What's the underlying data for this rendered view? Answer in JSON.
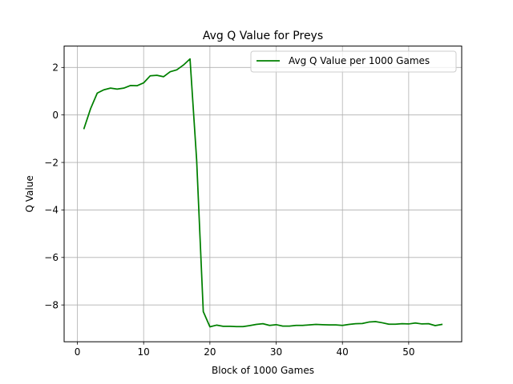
{
  "chart_data": {
    "type": "line",
    "title": "Avg Q Value for Preys",
    "xlabel": "Block of 1000 Games",
    "ylabel": "Q Value",
    "xlim": [
      -2,
      58
    ],
    "ylim": [
      -9.55,
      2.9
    ],
    "xticks": [
      0,
      10,
      20,
      30,
      40,
      50
    ],
    "yticks": [
      -8,
      -6,
      -4,
      -2,
      0,
      2
    ],
    "xtick_labels": [
      "0",
      "10",
      "20",
      "30",
      "40",
      "50"
    ],
    "ytick_labels": [
      "−8",
      "−6",
      "−4",
      "−2",
      "0",
      "2"
    ],
    "grid": true,
    "legend_position": "top-right",
    "series": [
      {
        "name": "Avg Q Value per 1000 Games",
        "color": "#008000",
        "x": [
          1,
          2,
          3,
          4,
          5,
          6,
          7,
          8,
          9,
          10,
          11,
          12,
          13,
          14,
          15,
          16,
          17,
          18,
          19,
          20,
          21,
          22,
          23,
          24,
          25,
          26,
          27,
          28,
          29,
          30,
          31,
          32,
          33,
          34,
          35,
          36,
          37,
          38,
          39,
          40,
          41,
          42,
          43,
          44,
          45,
          46,
          47,
          48,
          49,
          50,
          51,
          52,
          53,
          54,
          55
        ],
        "y": [
          -0.57,
          0.27,
          0.92,
          1.06,
          1.13,
          1.09,
          1.13,
          1.24,
          1.23,
          1.35,
          1.65,
          1.67,
          1.61,
          1.82,
          1.9,
          2.1,
          2.36,
          -1.9,
          -8.28,
          -8.92,
          -8.85,
          -8.9,
          -8.9,
          -8.91,
          -8.91,
          -8.87,
          -8.82,
          -8.79,
          -8.86,
          -8.83,
          -8.89,
          -8.89,
          -8.86,
          -8.86,
          -8.84,
          -8.82,
          -8.83,
          -8.84,
          -8.84,
          -8.86,
          -8.82,
          -8.79,
          -8.78,
          -8.72,
          -8.7,
          -8.75,
          -8.81,
          -8.81,
          -8.79,
          -8.8,
          -8.76,
          -8.8,
          -8.79,
          -8.87,
          -8.82
        ]
      }
    ]
  }
}
